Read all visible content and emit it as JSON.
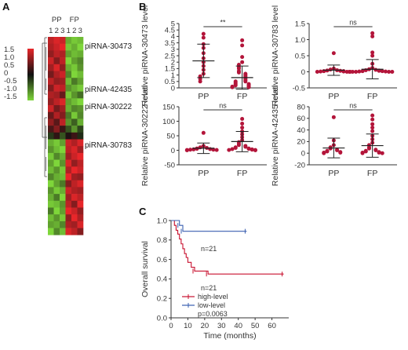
{
  "panel_labels": {
    "a": "A",
    "b": "B",
    "c": "C"
  },
  "chart_data": [
    {
      "type": "heatmap",
      "panel": "A",
      "group_labels": [
        "PP",
        "FP"
      ],
      "column_labels": [
        "1",
        "2",
        "3",
        "1",
        "2",
        "3"
      ],
      "row_labels": [
        "piRNA-30473",
        "piRNA-42435",
        "piRNA-30222",
        "piRNA-30783"
      ],
      "colorbar_ticks": [
        "1.5",
        "1.0",
        "0.5",
        "0",
        "-0.5",
        "-1.0",
        "-1.5"
      ],
      "colors": {
        "high": "#e8262a",
        "mid": "#111111",
        "low": "#7ed63a"
      },
      "values": [
        [
          1.2,
          1.4,
          1.3,
          -1.2,
          -1.4,
          -1.3
        ],
        [
          1.1,
          1.3,
          1.5,
          -1.4,
          -1.2,
          -1.5
        ],
        [
          0.9,
          1.2,
          1.1,
          -1.1,
          -1.3,
          -1.2
        ],
        [
          1.3,
          0.8,
          1.2,
          -1.5,
          -1.1,
          -0.9
        ],
        [
          1.0,
          1.4,
          0.9,
          -1.2,
          -1.4,
          -1.0
        ],
        [
          0.7,
          1.1,
          1.3,
          -0.9,
          -1.5,
          -1.3
        ],
        [
          1.2,
          0.9,
          1.0,
          -1.3,
          -0.8,
          -1.1
        ],
        [
          0.8,
          1.3,
          1.2,
          -1.0,
          -1.2,
          -1.4
        ],
        [
          1.1,
          1.0,
          0.6,
          -1.4,
          -1.0,
          -0.7
        ],
        [
          0.9,
          1.2,
          1.4,
          -1.1,
          -1.3,
          -1.5
        ],
        [
          1.3,
          0.7,
          1.0,
          -1.2,
          -0.9,
          -1.0
        ],
        [
          0.6,
          1.1,
          0.8,
          -0.8,
          -1.4,
          -0.9
        ],
        [
          0.9,
          0.5,
          1.2,
          -1.0,
          -0.6,
          -1.2
        ],
        [
          0.4,
          0.8,
          0.3,
          -0.5,
          -1.0,
          -0.4
        ],
        [
          -0.3,
          0.2,
          -0.5,
          0.1,
          0.3,
          -0.2
        ],
        [
          -1.2,
          -1.4,
          -1.1,
          1.3,
          1.1,
          1.4
        ],
        [
          -1.0,
          -1.3,
          -1.5,
          1.2,
          1.4,
          1.0
        ],
        [
          -1.4,
          -0.9,
          -1.2,
          1.0,
          1.3,
          1.5
        ],
        [
          -1.1,
          -1.5,
          -1.0,
          1.4,
          0.9,
          1.2
        ],
        [
          -1.3,
          -1.0,
          -1.4,
          1.1,
          1.5,
          1.3
        ],
        [
          -0.9,
          -1.2,
          -1.3,
          1.5,
          1.0,
          0.9
        ],
        [
          -1.5,
          -1.1,
          -0.8,
          0.8,
          1.2,
          1.4
        ],
        [
          -1.0,
          -1.4,
          -1.2,
          1.3,
          1.1,
          1.0
        ],
        [
          -1.2,
          -0.8,
          -1.5,
          1.0,
          1.4,
          1.2
        ],
        [
          -1.4,
          -1.3,
          -1.0,
          1.2,
          0.8,
          1.5
        ],
        [
          -0.8,
          -1.5,
          -1.1,
          1.5,
          1.3,
          0.9
        ],
        [
          -1.3,
          -1.0,
          -1.4,
          0.9,
          1.5,
          1.1
        ],
        [
          -1.1,
          -1.2,
          -0.9,
          1.1,
          1.0,
          1.4
        ],
        [
          -1.5,
          -0.9,
          -1.3,
          1.4,
          1.2,
          0.8
        ]
      ]
    },
    {
      "type": "scatter",
      "panel": "B",
      "ylabel": "Relative piRNA-30473 level",
      "categories": [
        "PP",
        "FP"
      ],
      "ylim": [
        0,
        5
      ],
      "yticks": [
        0,
        0.5,
        1,
        1.5,
        2,
        2.5,
        3,
        3.5,
        4,
        4.5,
        5
      ],
      "ytick_labels": [
        "0",
        "0.5",
        "1",
        "1.5",
        "2",
        "2.5",
        "3",
        "3.5",
        "4",
        "4.5",
        "5"
      ],
      "significance": "**",
      "series": [
        {
          "values": [
            4.2,
            3.9,
            3.4,
            3.1,
            2.7,
            2.3,
            2.0,
            1.7,
            1.4,
            1.1,
            0.9,
            0.7,
            0.5
          ],
          "mean": 2.1,
          "sd": 1.3
        },
        {
          "values": [
            3.7,
            3.3,
            2.4,
            2.0,
            1.8,
            1.6,
            1.5,
            1.3,
            1.2,
            1.1,
            1.0,
            0.9,
            0.8,
            0.7,
            0.6,
            0.5,
            0.5,
            0.4,
            0.3,
            0.3,
            0.2,
            0.2,
            0.1,
            0.1,
            0.05,
            0.05
          ],
          "mean": 0.8,
          "sd": 0.9
        }
      ]
    },
    {
      "type": "scatter",
      "panel": "B",
      "ylabel": "Relative piRNA-30783 level",
      "categories": [
        "PP",
        "FP"
      ],
      "ylim": [
        -0.5,
        1.5
      ],
      "yticks": [
        -0.5,
        0,
        0.5,
        1,
        1.5
      ],
      "ytick_labels": [
        "-0.5",
        "0",
        "0.5",
        "1.0",
        "1.5"
      ],
      "significance": "ns",
      "series": [
        {
          "values": [
            0.58,
            0.1,
            0.07,
            0.05,
            0.04,
            0.03,
            0.02,
            0.02,
            0.01,
            0.01,
            0.0,
            0.0,
            0.0
          ],
          "mean": 0.05,
          "sd": 0.16
        },
        {
          "values": [
            1.2,
            1.1,
            0.6,
            0.5,
            0.25,
            0.12,
            0.08,
            0.06,
            0.05,
            0.04,
            0.03,
            0.02,
            0.02,
            0.01,
            0.01,
            0.0,
            0.0,
            0.0,
            0.0,
            0.0
          ],
          "mean": 0.08,
          "sd": 0.3
        }
      ]
    },
    {
      "type": "scatter",
      "panel": "B",
      "ylabel": "Relative piRNA-30222 level",
      "categories": [
        "PP",
        "FP"
      ],
      "ylim": [
        -50,
        150
      ],
      "yticks": [
        -50,
        0,
        50,
        100,
        150
      ],
      "ytick_labels": [
        "-50",
        "0",
        "50",
        "100",
        "150"
      ],
      "significance": "ns",
      "series": [
        {
          "values": [
            60,
            15,
            10,
            8,
            6,
            5,
            4,
            3,
            2,
            2,
            1,
            1,
            0
          ],
          "mean": 7,
          "sd": 18
        },
        {
          "values": [
            108,
            92,
            78,
            65,
            55,
            45,
            35,
            28,
            22,
            18,
            15,
            12,
            10,
            8,
            6,
            5,
            4,
            3,
            2,
            1,
            1,
            0
          ],
          "mean": 30,
          "sd": 35
        }
      ]
    },
    {
      "type": "scatter",
      "panel": "B",
      "ylabel": "Relative piRNA-42435 level",
      "categories": [
        "PP",
        "FP"
      ],
      "ylim": [
        -20,
        80
      ],
      "yticks": [
        -20,
        0,
        20,
        40,
        60,
        80
      ],
      "ytick_labels": [
        "-20",
        "0",
        "20",
        "40",
        "60",
        "80"
      ],
      "significance": "ns",
      "series": [
        {
          "values": [
            62,
            22,
            14,
            10,
            8,
            6,
            5,
            4,
            3,
            2,
            1,
            1,
            0
          ],
          "mean": 9,
          "sd": 17
        },
        {
          "values": [
            65,
            58,
            50,
            44,
            38,
            30,
            24,
            18,
            14,
            10,
            8,
            6,
            5,
            4,
            3,
            2,
            1,
            1,
            0,
            0
          ],
          "mean": 13,
          "sd": 20
        }
      ]
    },
    {
      "type": "line",
      "panel": "C",
      "ylabel": "Overall survival",
      "xlabel": "Time (months)",
      "xlim": [
        0,
        70
      ],
      "ylim": [
        0.0,
        1.0
      ],
      "xticks": [
        0,
        10,
        20,
        30,
        40,
        50,
        60
      ],
      "yticks": [
        0.0,
        0.2,
        0.4,
        0.6,
        0.8,
        1.0
      ],
      "ytick_labels": [
        "0.0",
        "0.2",
        "0.4",
        "0.6",
        "0.8",
        "1.0"
      ],
      "annotations": [
        "n=21",
        "n=21",
        "p=0.0063"
      ],
      "legend_position": "bottom-left",
      "series": [
        {
          "name": "high-level",
          "color": "#c8102e",
          "x": [
            0,
            2,
            3,
            4,
            5,
            6,
            7,
            8,
            9,
            10,
            12,
            14,
            22,
            67
          ],
          "y": [
            1.0,
            0.95,
            0.9,
            0.86,
            0.81,
            0.76,
            0.71,
            0.66,
            0.62,
            0.57,
            0.52,
            0.48,
            0.45,
            0.45
          ]
        },
        {
          "name": "low-level",
          "color": "#3a5fb0",
          "x": [
            0,
            5,
            7,
            45
          ],
          "y": [
            1.0,
            0.95,
            0.89,
            0.89
          ]
        }
      ]
    }
  ]
}
